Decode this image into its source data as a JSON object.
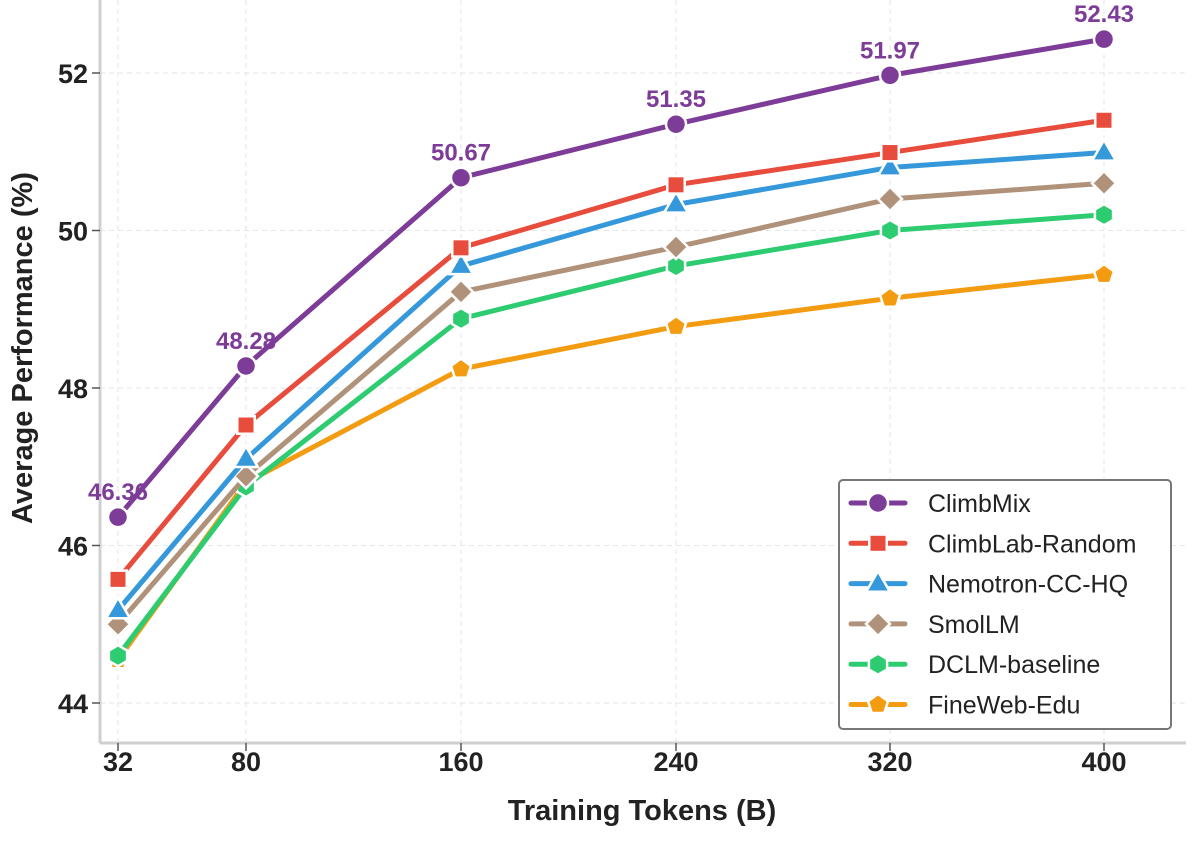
{
  "chart_data": {
    "type": "line",
    "title": "",
    "xlabel": "Training Tokens (B)",
    "ylabel": "Average Performance (%)",
    "x": [
      32,
      80,
      160,
      240,
      320,
      400
    ],
    "x_tick_labels": [
      "32",
      "80",
      "160",
      "240",
      "320",
      "400"
    ],
    "x_scale": "categorical-positions",
    "y_ticks": [
      44,
      46,
      48,
      50,
      52
    ],
    "ylim": [
      43.5,
      52.9
    ],
    "grid": true,
    "legend_position": "bottom-right",
    "series": [
      {
        "name": "ClimbMix",
        "color": "#7d3c98",
        "marker": "circle",
        "values": [
          46.36,
          48.28,
          50.67,
          51.35,
          51.97,
          52.43
        ],
        "data_labels": [
          "46.36",
          "48.28",
          "50.67",
          "51.35",
          "51.97",
          "52.43"
        ]
      },
      {
        "name": "ClimbLab-Random",
        "color": "#e74c3c",
        "marker": "square",
        "values": [
          45.57,
          47.53,
          49.78,
          50.58,
          50.99,
          51.4
        ]
      },
      {
        "name": "Nemotron-CC-HQ",
        "color": "#3498db",
        "marker": "triangle",
        "values": [
          45.18,
          47.1,
          49.55,
          50.33,
          50.8,
          50.99
        ]
      },
      {
        "name": "SmolLM",
        "color": "#b0927a",
        "marker": "diamond",
        "values": [
          45.0,
          46.88,
          49.22,
          49.79,
          50.4,
          50.6
        ]
      },
      {
        "name": "DCLM-baseline",
        "color": "#2ecc71",
        "marker": "hexagon",
        "values": [
          44.6,
          46.75,
          48.88,
          49.55,
          50.0,
          50.2
        ]
      },
      {
        "name": "FineWeb-Edu",
        "color": "#f39c12",
        "marker": "pentagon",
        "values": [
          44.55,
          46.8,
          48.24,
          48.78,
          49.14,
          49.44
        ]
      }
    ]
  }
}
